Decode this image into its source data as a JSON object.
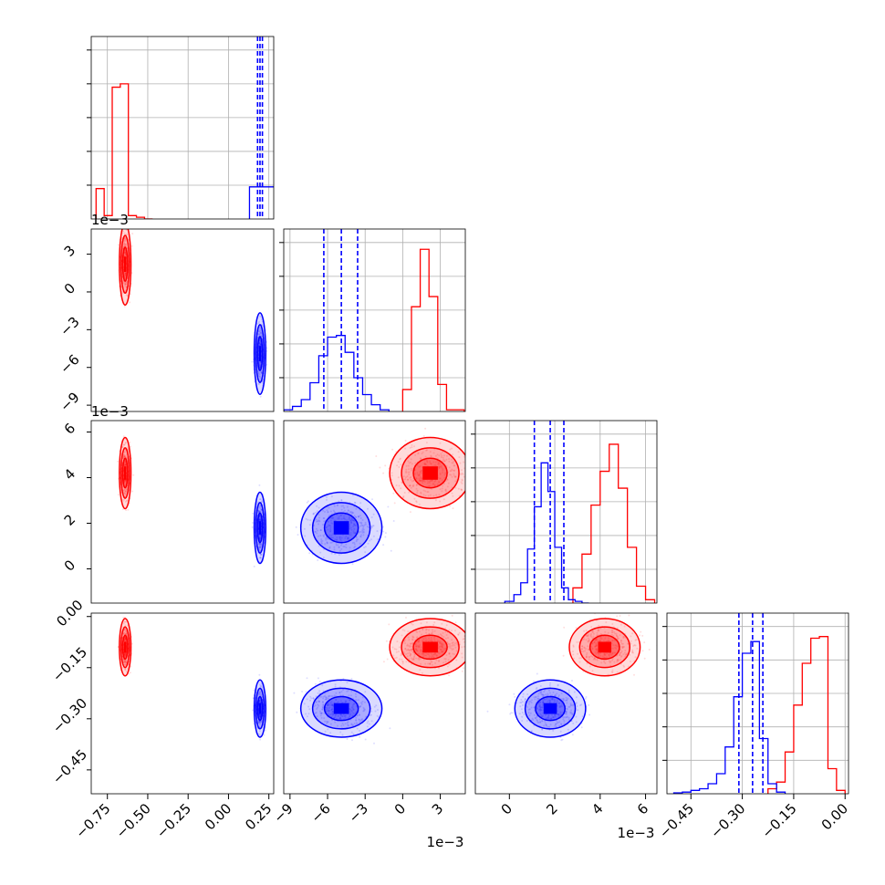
{
  "chart_data": {
    "type": "corner",
    "grid": true,
    "series": [
      {
        "color": "#ff0000",
        "cluster": {
          "p1": -0.64,
          "p2": 0.0022,
          "p3": 0.0042,
          "p4": -0.09
        }
      },
      {
        "color": "#0000ff",
        "cluster": {
          "p1": 0.195,
          "p2": -0.0049,
          "p3": 0.0018,
          "p4": -0.27
        }
      }
    ],
    "quantiles": {
      "p1": [
        0.18,
        0.195,
        0.21
      ],
      "p2": [
        -0.0063,
        -0.0049,
        -0.0036
      ],
      "p3": [
        0.0011,
        0.0018,
        0.0024
      ],
      "p4": [
        -0.31,
        -0.27,
        -0.24
      ]
    },
    "histograms": {
      "p1": {
        "red": {
          "edges": [
            -0.82,
            -0.77,
            -0.72,
            -0.67,
            -0.62,
            -0.57,
            -0.52,
            -0.47
          ],
          "values": [
            0.18,
            0.02,
            0.78,
            0.8,
            0.02,
            0.01,
            0.0
          ]
        },
        "blue": {
          "edges": [
            0.13,
            0.18,
            0.23,
            0.28,
            0.29
          ],
          "values": [
            0.19,
            0.19,
            0.19,
            0.19
          ]
        }
      },
      "p2": {
        "blue": {
          "edges": [
            -0.0095,
            -0.0088,
            -0.0081,
            -0.0074,
            -0.0067,
            -0.006,
            -0.0053,
            -0.0046,
            -0.0039,
            -0.0032,
            -0.0025,
            -0.0018,
            -0.0011
          ],
          "values": [
            0.01,
            0.03,
            0.07,
            0.17,
            0.33,
            0.44,
            0.45,
            0.35,
            0.2,
            0.1,
            0.04,
            0.01
          ]
        },
        "red": {
          "edges": [
            0.0,
            0.0007,
            0.0014,
            0.0021,
            0.0028,
            0.0035,
            0.0042,
            0.0049
          ],
          "values": [
            0.13,
            0.62,
            0.96,
            0.68,
            0.16,
            0.01,
            0.01
          ]
        }
      },
      "p3": {
        "blue": {
          "edges": [
            -0.0002,
            0.0002,
            0.0005,
            0.0008,
            0.0011,
            0.0014,
            0.0017,
            0.002,
            0.0023,
            0.0026,
            0.0029,
            0.0032,
            0.0035
          ],
          "values": [
            0.01,
            0.05,
            0.12,
            0.32,
            0.57,
            0.83,
            0.66,
            0.33,
            0.09,
            0.02,
            0.01,
            0.0
          ]
        },
        "red": {
          "edges": [
            0.0028,
            0.0032,
            0.0036,
            0.004,
            0.0044,
            0.0048,
            0.0052,
            0.0056,
            0.006,
            0.0064
          ],
          "values": [
            0.09,
            0.29,
            0.58,
            0.78,
            0.94,
            0.68,
            0.33,
            0.1,
            0.02
          ]
        }
      },
      "p4": {
        "blue": {
          "edges": [
            -0.5,
            -0.475,
            -0.45,
            -0.425,
            -0.4,
            -0.375,
            -0.35,
            -0.325,
            -0.3,
            -0.275,
            -0.25,
            -0.225,
            -0.2,
            -0.175
          ],
          "values": [
            0.005,
            0.01,
            0.02,
            0.03,
            0.06,
            0.12,
            0.28,
            0.58,
            0.84,
            0.91,
            0.33,
            0.06,
            0.01
          ]
        },
        "red": {
          "edges": [
            -0.225,
            -0.2,
            -0.175,
            -0.15,
            -0.125,
            -0.1,
            -0.075,
            -0.05,
            -0.025,
            0.0
          ],
          "values": [
            0.03,
            0.07,
            0.25,
            0.53,
            0.78,
            0.93,
            0.94,
            0.15,
            0.02
          ]
        }
      }
    },
    "axes": {
      "p1": {
        "range": [
          -0.85,
          0.28
        ],
        "ticks": [
          -0.75,
          -0.5,
          -0.25,
          0.0,
          0.25
        ],
        "tick_labels": [
          "−0.75",
          "−0.50",
          "−0.25",
          "0.00",
          "0.25"
        ]
      },
      "p2": {
        "range": [
          -0.0095,
          0.005
        ],
        "ticks": [
          -0.009,
          -0.006,
          -0.003,
          0.0,
          0.003
        ],
        "tick_labels": [
          "−9",
          "−6",
          "−3",
          "0",
          "3"
        ]
      },
      "p3": {
        "range": [
          -0.0015,
          0.0065
        ],
        "ticks": [
          0.0,
          0.002,
          0.004,
          0.006
        ],
        "tick_labels": [
          "0",
          "2",
          "4",
          "6"
        ]
      },
      "p4": {
        "range": [
          -0.52,
          0.01
        ],
        "ticks": [
          -0.45,
          -0.3,
          -0.15,
          0.0
        ],
        "tick_labels": [
          "−0.45",
          "−0.30",
          "−0.15",
          "0.00"
        ]
      }
    },
    "offset_labels": {
      "p2_y": "1e−3",
      "p3_y": "1e−3",
      "p2_x": "1e−3",
      "p3_x": "1e−3"
    }
  }
}
